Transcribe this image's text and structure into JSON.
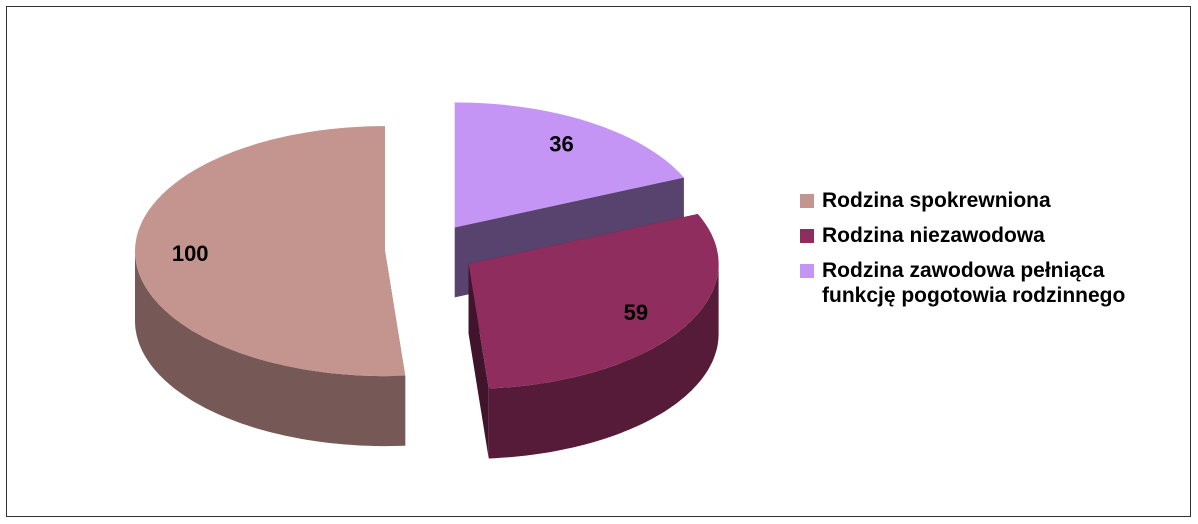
{
  "chart_data": {
    "type": "pie",
    "categories": [
      "Rodzina spokrewniona",
      "Rodzina niezawodowa",
      "Rodzina zawodowa pełniąca funkcję pogotowia rodzinnego"
    ],
    "values": [
      100,
      59,
      36
    ],
    "colors": [
      "#c4948f",
      "#8f2d5f",
      "#c495f5"
    ],
    "legend": "right"
  }
}
